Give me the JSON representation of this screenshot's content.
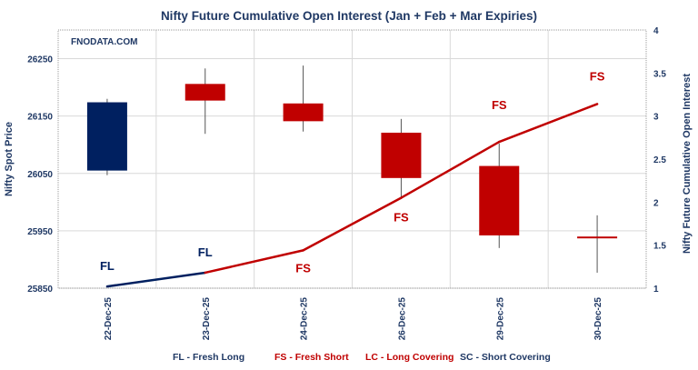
{
  "chart_data": {
    "type": "candlestick+line",
    "title": "Nifty Future Cumulative Open Interest (Jan  + Feb + Mar Expiries)",
    "watermark": "FNODATA.COM",
    "ylabel_left": "Nifty Spot Price",
    "ylabel_right": "Nifty Future Cumulative Open Interest",
    "ylim_left": [
      25850,
      26300
    ],
    "yticks_left": [
      25850,
      25950,
      26050,
      26150,
      26250
    ],
    "ylim_right": [
      1,
      4
    ],
    "yticks_right": [
      "1",
      "1.5",
      "2",
      "2.5",
      "3",
      "3.5",
      "4"
    ],
    "grid": true,
    "categories": [
      "22-Dec-25",
      "23-Dec-25",
      "24-Dec-25",
      "26-Dec-25",
      "29-Dec-25",
      "30-Dec-25"
    ],
    "candles": [
      {
        "open": 26055,
        "high": 26180,
        "low": 26047,
        "close": 26174
      },
      {
        "open": 26206,
        "high": 26233,
        "low": 26119,
        "close": 26177
      },
      {
        "open": 26172,
        "high": 26238,
        "low": 26123,
        "close": 26141
      },
      {
        "open": 26121,
        "high": 26145,
        "low": 26009,
        "close": 26042
      },
      {
        "open": 26063,
        "high": 26102,
        "low": 25920,
        "close": 25942
      },
      {
        "open": 25940,
        "high": 25977,
        "low": 25877,
        "close": 25939
      }
    ],
    "open_interest": [
      1.02,
      1.18,
      1.44,
      2.05,
      2.7,
      3.14
    ],
    "signals": [
      "FL",
      "FL",
      "FS",
      "FS",
      "FS",
      "FS"
    ],
    "legend": [
      {
        "code": "FL - Fresh Long",
        "color": "#1f3864"
      },
      {
        "code": "FS - Fresh Short",
        "color": "#c00000"
      },
      {
        "code": "LC - Long Covering",
        "color": "#c00000"
      },
      {
        "code": "SC - Short Covering",
        "color": "#1f3864"
      }
    ],
    "colors": {
      "up": "#002060",
      "down": "#c00000",
      "text": "#1f3864"
    }
  }
}
